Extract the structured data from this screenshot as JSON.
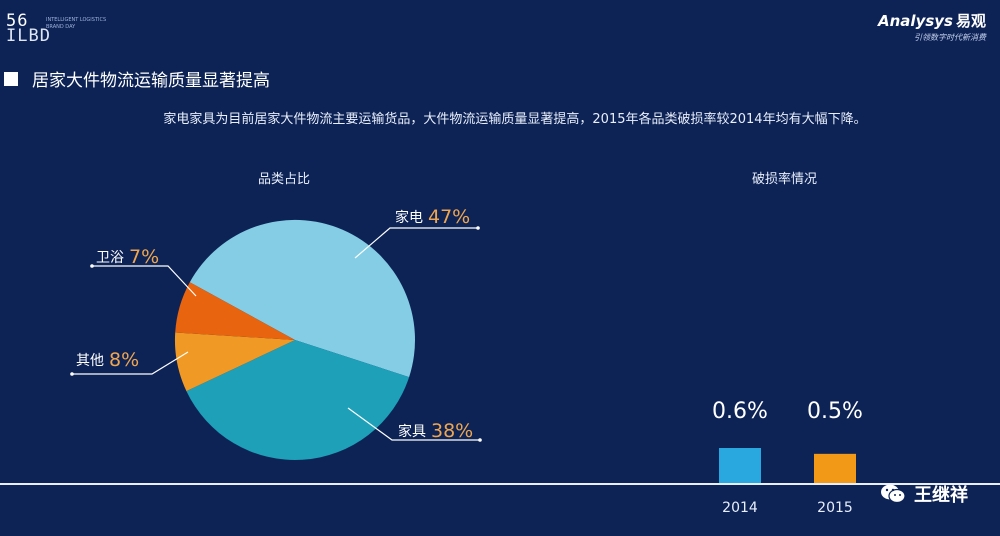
{
  "header": {
    "logo_left_number_top": "56",
    "logo_left_number_bottom": "ILBD",
    "logo_left_subtitle": "INTELLIGENT LOGISTICS BRAND DAY",
    "logo_right_brand": "Analysys",
    "logo_right_brand_cn": "易观",
    "logo_right_tagline": "引领数字时代新消费"
  },
  "section": {
    "title": "居家大件物流运输质量显著提高",
    "description": "家电家具为目前居家大件物流主要运输货品，大件物流运输质量显著提高，2015年各品类破损率较2014年均有大幅下降。"
  },
  "watermark": {
    "text": "王继祥"
  },
  "colors": {
    "background": "#0d2356",
    "appliance": "#84cde4",
    "furniture": "#1da0b8",
    "other": "#f09a25",
    "bathroom": "#e8640f",
    "bar_2014": "#29a8e0",
    "bar_2015": "#f29a17",
    "label_percent": "#f0a64e"
  },
  "chart_data": [
    {
      "type": "pie",
      "title": "品类占比",
      "slices": [
        {
          "label": "家电",
          "value": 47,
          "display": "47%"
        },
        {
          "label": "家具",
          "value": 38,
          "display": "38%"
        },
        {
          "label": "其他",
          "value": 8,
          "display": "8%"
        },
        {
          "label": "卫浴",
          "value": 7,
          "display": "7%"
        }
      ]
    },
    {
      "type": "bar",
      "title": "破损率情况",
      "categories": [
        "2014",
        "2015"
      ],
      "values": [
        0.6,
        0.5
      ],
      "value_labels": [
        "0.6%",
        "0.5%"
      ]
    }
  ]
}
